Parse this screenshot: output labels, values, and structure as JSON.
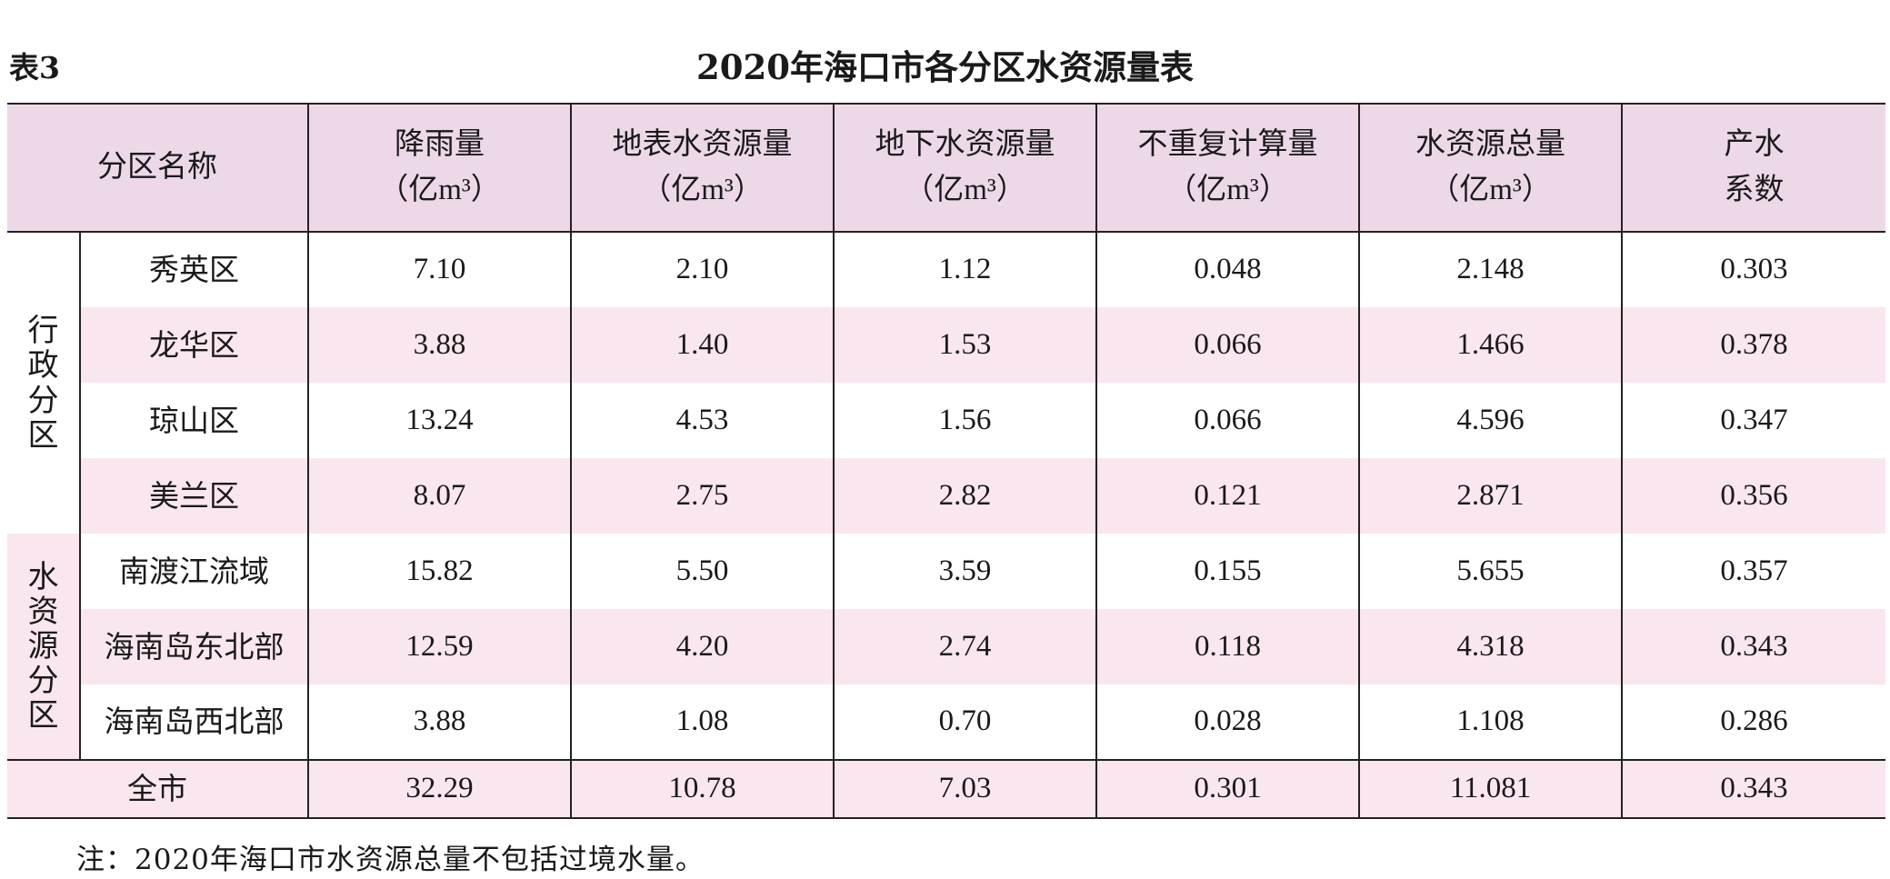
{
  "label": "表3",
  "title": "2020年海口市各分区水资源量表",
  "headers": [
    {
      "l1": "分区名称",
      "l2": ""
    },
    {
      "l1": "降雨量",
      "l2": "（亿m³）"
    },
    {
      "l1": "地表水资源量",
      "l2": "（亿m³）"
    },
    {
      "l1": "地下水资源量",
      "l2": "（亿m³）"
    },
    {
      "l1": "不重复计算量",
      "l2": "（亿m³）"
    },
    {
      "l1": "水资源总量",
      "l2": "（亿m³）"
    },
    {
      "l1": "产水",
      "l2": "系数"
    }
  ],
  "groups": {
    "admin": "行政分区",
    "water": "水资源分区"
  },
  "rows": [
    [
      "秀英区",
      "7.10",
      "2.10",
      "1.12",
      "0.048",
      "2.148",
      "0.303"
    ],
    [
      "龙华区",
      "3.88",
      "1.40",
      "1.53",
      "0.066",
      "1.466",
      "0.378"
    ],
    [
      "琼山区",
      "13.24",
      "4.53",
      "1.56",
      "0.066",
      "4.596",
      "0.347"
    ],
    [
      "美兰区",
      "8.07",
      "2.75",
      "2.82",
      "0.121",
      "2.871",
      "0.356"
    ],
    [
      "南渡江流域",
      "15.82",
      "5.50",
      "3.59",
      "0.155",
      "5.655",
      "0.357"
    ],
    [
      "海南岛东北部",
      "12.59",
      "4.20",
      "2.74",
      "0.118",
      "4.318",
      "0.343"
    ],
    [
      "海南岛西北部",
      "3.88",
      "1.08",
      "0.70",
      "0.028",
      "1.108",
      "0.286"
    ]
  ],
  "total": [
    "全市",
    "32.29",
    "10.78",
    "7.03",
    "0.301",
    "11.081",
    "0.343"
  ],
  "note": "注：2020年海口市水资源总量不包括过境水量。"
}
